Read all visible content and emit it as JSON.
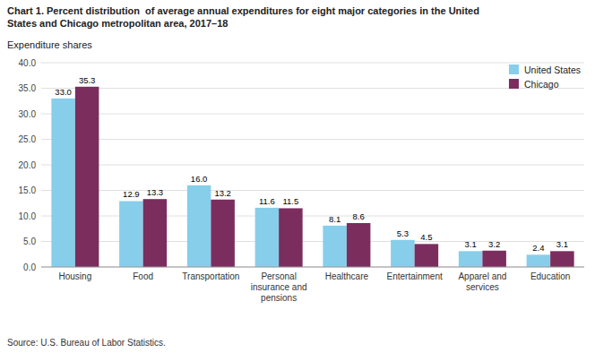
{
  "chart_data": {
    "type": "bar",
    "title": "Chart 1. Percent distribution  of average annual expenditures for eight major categories in the United\nStates and Chicago metropolitan area, 2017–18",
    "subtitle": "Expenditure shares",
    "source": "Source: U.S. Bureau of Labor Statistics.",
    "categories": [
      "Housing",
      "Food",
      "Transportation",
      "Personal\ninsurance and\npensions",
      "Healthcare",
      "Entertainment",
      "Apparel and\nservices",
      "Education"
    ],
    "series": [
      {
        "name": "United States",
        "color": "#87CEEB",
        "values": [
          33.0,
          12.9,
          16.0,
          11.6,
          8.1,
          5.3,
          3.1,
          2.4
        ],
        "value_labels": [
          "33.0",
          "12.9",
          "16.0",
          "11.6",
          "8.1",
          "5.3",
          "3.1",
          "2.4"
        ]
      },
      {
        "name": "Chicago",
        "color": "#7B2D5E",
        "values": [
          35.3,
          13.3,
          13.2,
          11.5,
          8.6,
          4.5,
          3.2,
          3.1
        ],
        "value_labels": [
          "35.3",
          "13.3",
          "13.2",
          "11.5",
          "8.6",
          "4.5",
          "3.2",
          "3.1"
        ]
      }
    ],
    "ylim": [
      0,
      40
    ],
    "yticks": [
      {
        "value": 0,
        "label": "0.0"
      },
      {
        "value": 5,
        "label": "5.0"
      },
      {
        "value": 10,
        "label": "10.0"
      },
      {
        "value": 15,
        "label": "15.0"
      },
      {
        "value": 20,
        "label": "20.0"
      },
      {
        "value": 25,
        "label": "25.0"
      },
      {
        "value": 30,
        "label": "30.0"
      },
      {
        "value": 35,
        "label": "35.0"
      },
      {
        "value": 40,
        "label": "40.0"
      }
    ],
    "grid": true,
    "legend": "upper-right",
    "data_labels": true
  }
}
